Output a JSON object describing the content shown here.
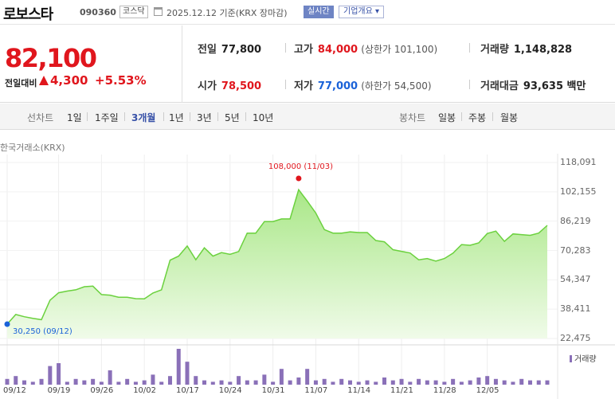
{
  "header": {
    "name": "로보스타",
    "code": "090360",
    "market": "코스닥",
    "date": "2025.12.12  기준(KRX 장마감)",
    "realtime_label": "실시간",
    "info_label": "기업개요 ▾"
  },
  "summary": {
    "price": "82,100",
    "change_label": "전일대비",
    "change_value": "4,300",
    "change_pct": "+5.53%",
    "prev_label": "전일",
    "prev": "77,800",
    "open_label": "시가",
    "open": "78,500",
    "high_label": "고가",
    "high": "84,000",
    "upper_limit": "(상한가 101,100)",
    "low_label": "저가",
    "low": "77,000",
    "lower_limit": "(하한가 54,500)",
    "volume_label": "거래량",
    "volume": "1,148,828",
    "amount_label": "거래대금",
    "amount": "93,635 백만"
  },
  "tabs": {
    "line_label": "선차트",
    "line_periods": [
      "1일",
      "1주일",
      "3개월",
      "1년",
      "3년",
      "5년",
      "10년"
    ],
    "active": "3개월",
    "candle_label": "봉차트",
    "candle_periods": [
      "일봉",
      "주봉",
      "월봉"
    ]
  },
  "chart_data": {
    "type": "area",
    "source": "한국거래소(KRX)",
    "y_ticks": [
      "118,091",
      "102,155",
      "86,219",
      "70,283",
      "54,347",
      "38,411",
      "22,475"
    ],
    "ylim": [
      22475,
      118091
    ],
    "x_ticks": [
      "09/12",
      "09/19",
      "09/26",
      "10/02",
      "10/17",
      "10/24",
      "10/31",
      "11/07",
      "11/14",
      "11/21",
      "11/28",
      "12/05"
    ],
    "max_label": "108,000 (11/03)",
    "min_label": "30,250 (09/12)",
    "colors": {
      "fill": "#c8f0b4",
      "line": "#6bd13e",
      "max": "#e0161d",
      "min": "#1a62d8",
      "volume": "#8a70b8"
    },
    "price": [
      30250,
      35500,
      34300,
      33400,
      32700,
      43300,
      47300,
      48200,
      48900,
      50600,
      50900,
      46300,
      46000,
      44900,
      44900,
      44100,
      44000,
      47200,
      48900,
      65000,
      67200,
      72700,
      65200,
      71700,
      67200,
      69100,
      68200,
      69700,
      79700,
      79700,
      86000,
      86000,
      87400,
      87400,
      103300,
      97100,
      90600,
      81600,
      79700,
      79700,
      80400,
      80000,
      80000,
      75700,
      75000,
      70700,
      69800,
      68900,
      65200,
      65900,
      64500,
      65900,
      68800,
      73500,
      73100,
      74400,
      79500,
      80800,
      75200,
      79300,
      78900,
      78500,
      79700,
      83900
    ],
    "volume_legend": "거래량",
    "volume": [
      4,
      6,
      3,
      2,
      4,
      13,
      15,
      2,
      4,
      3,
      4,
      2,
      10,
      2,
      4,
      2,
      3,
      7,
      2,
      6,
      25,
      16,
      6,
      3,
      2,
      3,
      2,
      6,
      3,
      3,
      7,
      2,
      11,
      3,
      5,
      11,
      3,
      4,
      2,
      4,
      3,
      2,
      3,
      2,
      5,
      3,
      4,
      2,
      4,
      3,
      3,
      2,
      4,
      2,
      3,
      5,
      6,
      4,
      3,
      2,
      4,
      3,
      3,
      3
    ]
  }
}
